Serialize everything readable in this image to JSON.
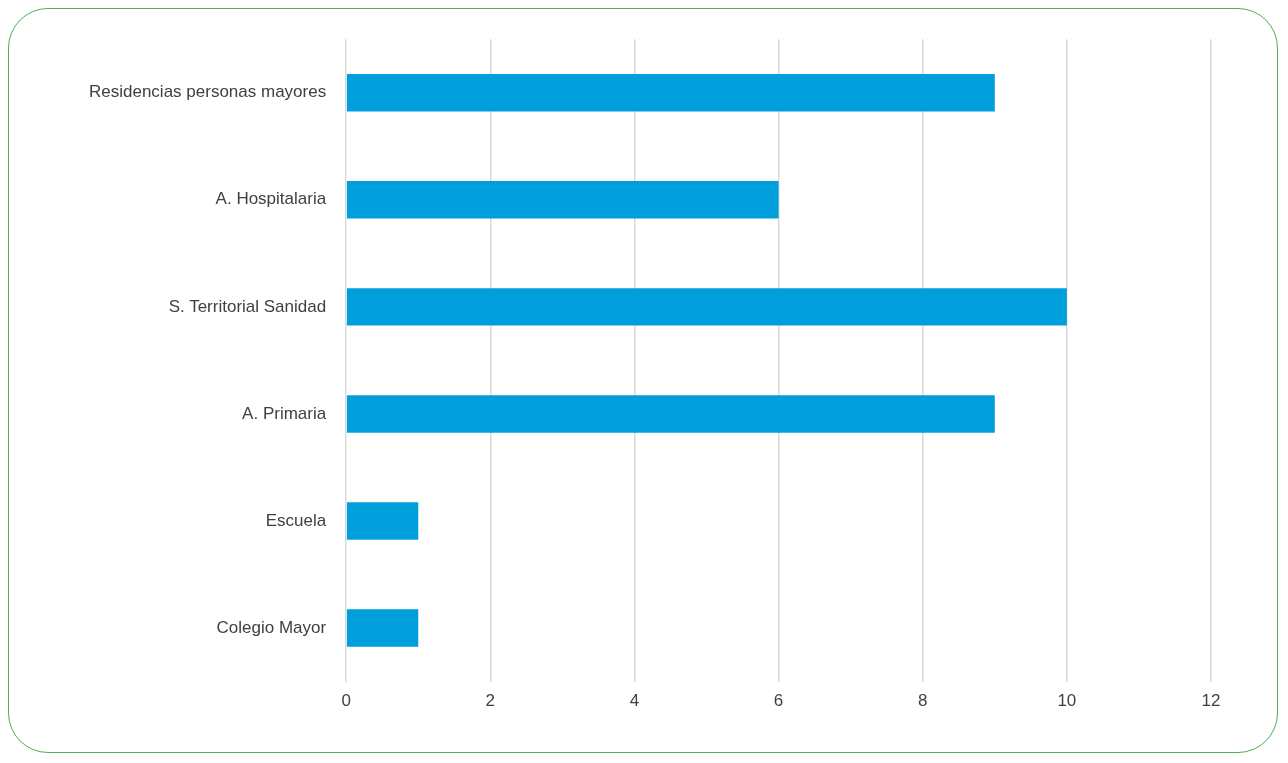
{
  "chart_data": {
    "type": "bar",
    "orientation": "horizontal",
    "categories": [
      "Residencias personas mayores",
      "A. Hospitalaria",
      "S. Territorial Sanidad",
      "A. Primaria",
      "Escuela",
      "Colegio Mayor"
    ],
    "values": [
      9,
      6,
      10,
      9,
      1,
      1
    ],
    "color": "#009fdb",
    "xlim": [
      0,
      12
    ],
    "xticks": [
      0,
      2,
      4,
      6,
      8,
      10,
      12
    ],
    "grid": "x",
    "legend": false
  }
}
